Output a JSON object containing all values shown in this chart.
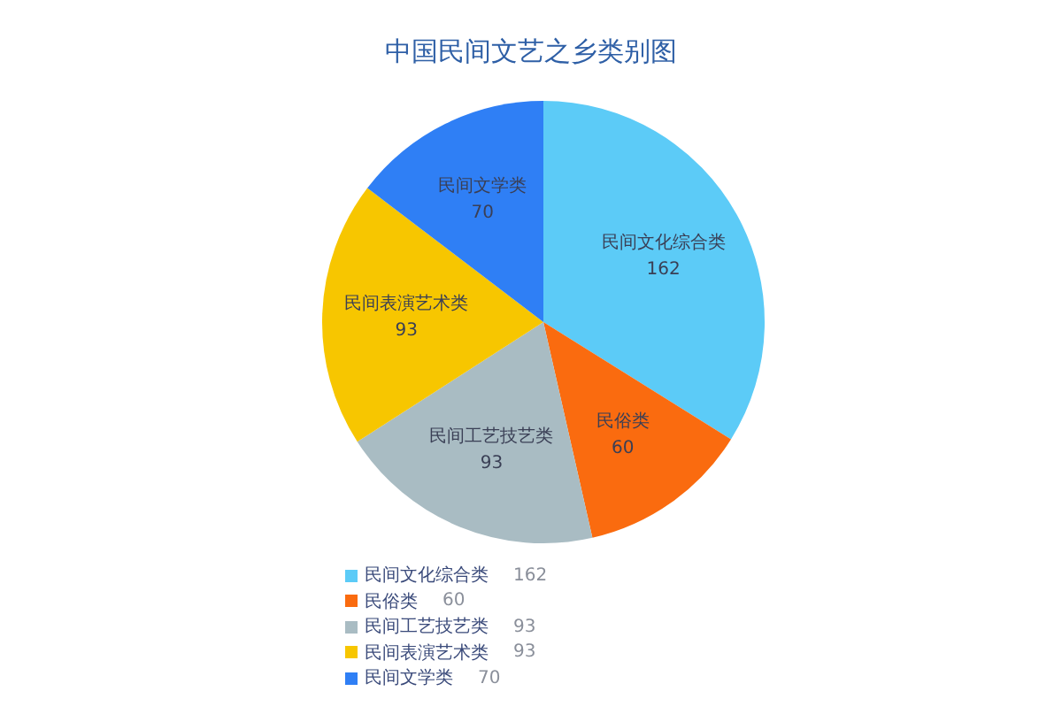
{
  "chart_data": {
    "type": "pie",
    "title": "中国民间文艺之乡类别图",
    "categories": [
      "民间文化综合类",
      "民俗类",
      "民间工艺技艺类",
      "民间表演艺术类",
      "民间文学类"
    ],
    "values": [
      162,
      60,
      93,
      93,
      70
    ],
    "colors": [
      "#5ccbf7",
      "#fa6b0f",
      "#a9bcc3",
      "#f7c600",
      "#2f7ff5"
    ],
    "value_labels": [
      "162",
      "60",
      "93",
      "93",
      "70"
    ],
    "legend": "bottom"
  }
}
